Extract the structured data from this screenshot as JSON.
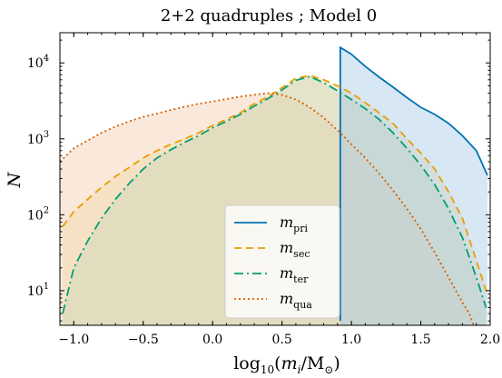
{
  "chart_data": {
    "type": "area",
    "title": "2+2 quadruples ; Model 0",
    "xlabel": "log10(mi/M⊙)",
    "ylabel": "N",
    "xlim": [
      -1.1,
      2.0
    ],
    "ylim": [
      3.5,
      25000
    ],
    "yscale": "log",
    "grid": false,
    "legend_position": "lower-center",
    "xticks": [
      -1.0,
      -0.5,
      0.0,
      0.5,
      1.0,
      1.5,
      2.0
    ],
    "xtick_labels": [
      "−1.0",
      "−0.5",
      "0.0",
      "0.5",
      "1.0",
      "1.5",
      "2.0"
    ],
    "yticks": [
      {
        "value": 10,
        "base": "10",
        "exp": "1"
      },
      {
        "value": 100,
        "base": "10",
        "exp": "2"
      },
      {
        "value": 1000,
        "base": "10",
        "exp": "3"
      },
      {
        "value": 10000,
        "base": "10",
        "exp": "4"
      }
    ],
    "series": [
      {
        "name": "m_pri",
        "label_main": "m",
        "label_sub": "pri",
        "color": "#0072b2",
        "fill": "#a6c9e6",
        "dash": "",
        "x": [
          0.92,
          0.92,
          1.0,
          1.1,
          1.2,
          1.3,
          1.4,
          1.5,
          1.6,
          1.7,
          1.8,
          1.9,
          1.98
        ],
        "y": [
          4,
          16000,
          13000,
          9000,
          6500,
          4800,
          3500,
          2600,
          2100,
          1600,
          1100,
          700,
          330
        ]
      },
      {
        "name": "m_sec",
        "label_main": "m",
        "label_sub": "sec",
        "color": "#e69f00",
        "fill": "#f5d9a8",
        "dash": "8,5",
        "x": [
          -1.08,
          -1.0,
          -0.9,
          -0.8,
          -0.7,
          -0.6,
          -0.5,
          -0.4,
          -0.3,
          -0.2,
          -0.1,
          0.0,
          0.1,
          0.2,
          0.3,
          0.4,
          0.5,
          0.6,
          0.7,
          0.8,
          0.9,
          1.0,
          1.1,
          1.2,
          1.3,
          1.4,
          1.5,
          1.6,
          1.7,
          1.8,
          1.9,
          1.97
        ],
        "y": [
          70,
          110,
          160,
          230,
          320,
          420,
          560,
          700,
          850,
          1000,
          1200,
          1500,
          1800,
          2200,
          2900,
          3600,
          4700,
          6300,
          6800,
          6000,
          5000,
          4000,
          3000,
          2200,
          1600,
          1000,
          650,
          400,
          200,
          90,
          25,
          10
        ]
      },
      {
        "name": "m_ter",
        "label_main": "m",
        "label_sub": "ter",
        "color": "#009e73",
        "fill": "#a8d8c6",
        "dash": "10,4,2,4",
        "x": [
          -1.08,
          -1.0,
          -0.9,
          -0.8,
          -0.7,
          -0.6,
          -0.5,
          -0.4,
          -0.3,
          -0.2,
          -0.1,
          0.0,
          0.1,
          0.2,
          0.3,
          0.4,
          0.5,
          0.6,
          0.7,
          0.8,
          0.9,
          1.0,
          1.1,
          1.2,
          1.3,
          1.4,
          1.5,
          1.6,
          1.7,
          1.8,
          1.9,
          1.97
        ],
        "y": [
          5,
          20,
          45,
          90,
          160,
          260,
          400,
          560,
          720,
          900,
          1100,
          1400,
          1700,
          2100,
          2700,
          3400,
          4400,
          5900,
          6600,
          5500,
          4300,
          3300,
          2500,
          1800,
          1200,
          750,
          450,
          250,
          120,
          50,
          15,
          6
        ]
      },
      {
        "name": "m_qua",
        "label_main": "m",
        "label_sub": "qua",
        "color": "#d55e00",
        "fill": "#f5ccb0",
        "dash": "2,3",
        "x": [
          -1.1,
          -1.0,
          -0.9,
          -0.8,
          -0.7,
          -0.6,
          -0.5,
          -0.4,
          -0.3,
          -0.2,
          -0.1,
          0.0,
          0.1,
          0.2,
          0.3,
          0.4,
          0.5,
          0.6,
          0.7,
          0.8,
          0.9,
          1.0,
          1.1,
          1.2,
          1.3,
          1.4,
          1.5,
          1.6,
          1.7,
          1.8,
          1.85,
          1.88
        ],
        "y": [
          500,
          750,
          950,
          1200,
          1450,
          1700,
          1950,
          2150,
          2400,
          2650,
          2900,
          3100,
          3350,
          3600,
          3800,
          4000,
          3800,
          3300,
          2600,
          1900,
          1300,
          850,
          560,
          350,
          210,
          120,
          65,
          32,
          15,
          7,
          5,
          3.5
        ]
      }
    ]
  }
}
